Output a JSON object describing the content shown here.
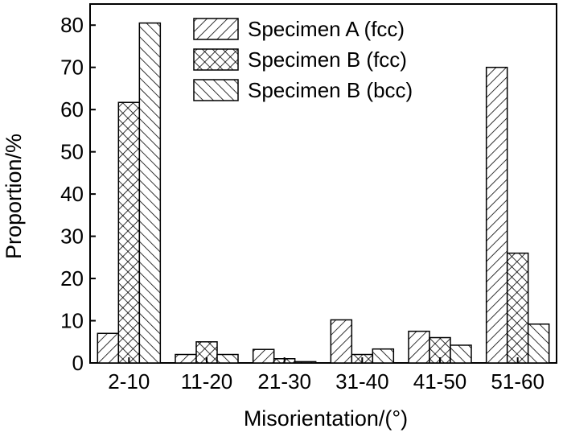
{
  "chart_data": {
    "type": "bar",
    "title": "",
    "xlabel": "Misorientation/(°)",
    "ylabel": "Proportion/%",
    "ylim": [
      0,
      85
    ],
    "yticks": [
      0,
      10,
      20,
      30,
      40,
      50,
      60,
      70,
      80
    ],
    "categories": [
      "2-10",
      "11-20",
      "21-30",
      "31-40",
      "41-50",
      "51-60"
    ],
    "series": [
      {
        "name": "Specimen A (fcc)",
        "pattern": "diagonal-forward",
        "values": [
          7.0,
          2.0,
          3.2,
          10.2,
          7.5,
          70.0
        ]
      },
      {
        "name": "Specimen B (fcc)",
        "pattern": "crosshatch",
        "values": [
          61.7,
          5.0,
          1.0,
          2.0,
          6.0,
          26.0
        ]
      },
      {
        "name": "Specimen B (bcc)",
        "pattern": "diagonal-backward",
        "values": [
          80.5,
          2.0,
          0.3,
          3.3,
          4.2,
          9.2
        ]
      }
    ],
    "legend_position": "top-center",
    "grid": false
  }
}
